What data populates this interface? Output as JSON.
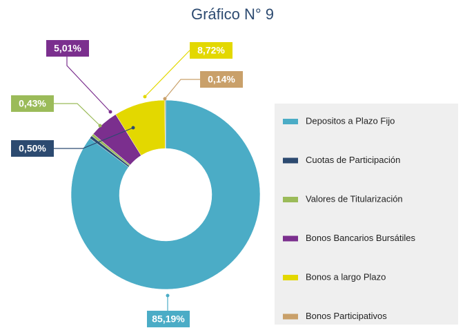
{
  "chart_data": {
    "type": "donut",
    "title": "Gráfico N° 9",
    "categories": [
      "Depositos a Plazo Fijo",
      "Cuotas de Participación",
      "Valores de Titularización",
      "Bonos Bancarios Bursátiles",
      "Bonos a largo Plazo",
      "Bonos Participativos"
    ],
    "values": [
      85.19,
      0.5,
      0.43,
      5.01,
      8.72,
      0.14
    ],
    "value_labels": [
      "85,19%",
      "0,50%",
      "0,43%",
      "5,01%",
      "8,72%",
      "0,14%"
    ],
    "colors": [
      "#4bacc6",
      "#2c4a70",
      "#9bbb59",
      "#7b2f8e",
      "#e3d800",
      "#c9a06a"
    ]
  }
}
